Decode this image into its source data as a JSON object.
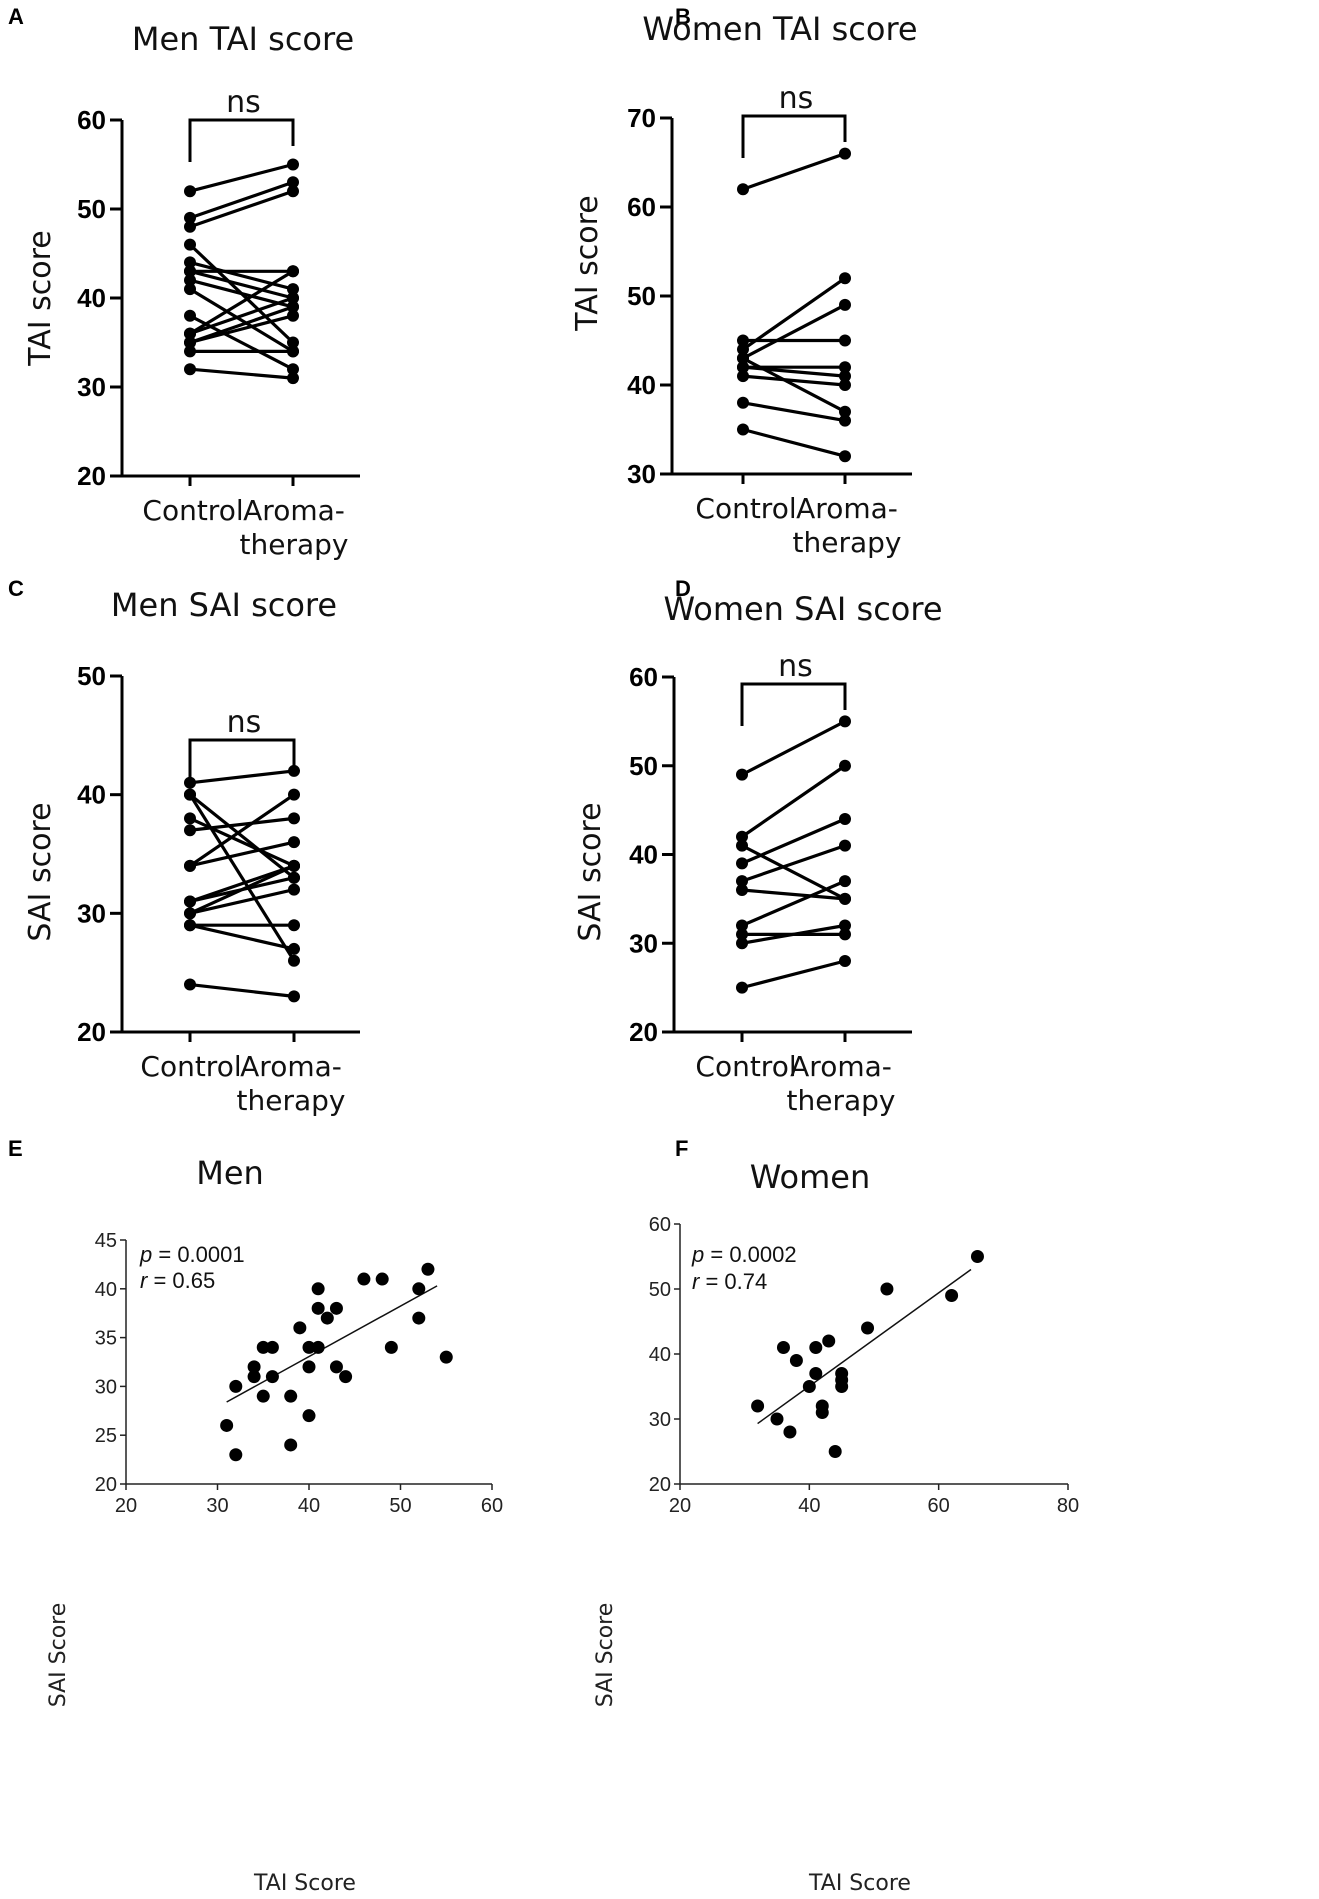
{
  "chart_data": [
    {
      "id": "A",
      "panel_label": "A",
      "type": "paired-dot",
      "title": "Men TAI score",
      "ylabel": "TAI score",
      "ylim": [
        20,
        60
      ],
      "yticks": [
        20,
        30,
        40,
        50,
        60
      ],
      "categories": [
        [
          "Control"
        ],
        [
          "Aroma-",
          "therapy"
        ]
      ],
      "significance": "ns",
      "pairs": [
        [
          52,
          55
        ],
        [
          49,
          53
        ],
        [
          48,
          52
        ],
        [
          46,
          35
        ],
        [
          44,
          41
        ],
        [
          43,
          43
        ],
        [
          43,
          40
        ],
        [
          42,
          39
        ],
        [
          41,
          34
        ],
        [
          38,
          32
        ],
        [
          36,
          43
        ],
        [
          36,
          40
        ],
        [
          35,
          39
        ],
        [
          35,
          38
        ],
        [
          34,
          34
        ],
        [
          32,
          31
        ]
      ]
    },
    {
      "id": "B",
      "panel_label": "B",
      "type": "paired-dot",
      "title": "Women TAI score",
      "ylabel": "TAI score",
      "ylim": [
        30,
        70
      ],
      "yticks": [
        30,
        40,
        50,
        60,
        70
      ],
      "categories": [
        [
          "Control"
        ],
        [
          "Aroma-",
          "therapy"
        ]
      ],
      "significance": "ns",
      "pairs": [
        [
          62,
          66
        ],
        [
          45,
          45
        ],
        [
          44,
          52
        ],
        [
          43,
          49
        ],
        [
          43,
          37
        ],
        [
          42,
          42
        ],
        [
          42,
          41
        ],
        [
          41,
          40
        ],
        [
          38,
          36
        ],
        [
          35,
          32
        ]
      ]
    },
    {
      "id": "C",
      "panel_label": "C",
      "type": "paired-dot",
      "title": "Men SAI score",
      "ylabel": "SAI score",
      "ylim": [
        20,
        50
      ],
      "yticks": [
        20,
        30,
        40,
        50
      ],
      "categories": [
        [
          "Control"
        ],
        [
          "Aroma-",
          "therapy"
        ]
      ],
      "significance": "ns",
      "pairs": [
        [
          41,
          42
        ],
        [
          40,
          33
        ],
        [
          38,
          34
        ],
        [
          37,
          38
        ],
        [
          34,
          40
        ],
        [
          34,
          36
        ],
        [
          31,
          34
        ],
        [
          31,
          33
        ],
        [
          30,
          32
        ],
        [
          29,
          27
        ],
        [
          29,
          29
        ],
        [
          24,
          23
        ],
        [
          40,
          26
        ],
        [
          30,
          34
        ]
      ]
    },
    {
      "id": "D",
      "panel_label": "D",
      "type": "paired-dot",
      "title": "Women SAI score",
      "ylabel": "SAI score",
      "ylim": [
        20,
        60
      ],
      "yticks": [
        20,
        30,
        40,
        50,
        60
      ],
      "categories": [
        [
          "Control"
        ],
        [
          "Aroma-",
          "therapy"
        ]
      ],
      "significance": "ns",
      "pairs": [
        [
          49,
          55
        ],
        [
          42,
          50
        ],
        [
          41,
          35
        ],
        [
          39,
          44
        ],
        [
          37,
          41
        ],
        [
          36,
          35
        ],
        [
          32,
          37
        ],
        [
          31,
          31
        ],
        [
          30,
          32
        ],
        [
          25,
          28
        ]
      ]
    },
    {
      "id": "E",
      "panel_label": "E",
      "type": "scatter",
      "title": "Men",
      "xlabel": "TAI Score",
      "ylabel": "SAI Score",
      "xlim": [
        20,
        60
      ],
      "ylim": [
        20,
        45
      ],
      "xticks": [
        20,
        30,
        40,
        50,
        60
      ],
      "yticks": [
        20,
        25,
        30,
        35,
        40,
        45
      ],
      "stats": {
        "p_label": "p",
        "p_value": "= 0.0001",
        "r_label": "r",
        "r_value": "= 0.65"
      },
      "fit_line": {
        "x": [
          31,
          54
        ],
        "y": [
          28.4,
          40.3
        ]
      },
      "points": [
        [
          31,
          26
        ],
        [
          32,
          23
        ],
        [
          32,
          30
        ],
        [
          34,
          32
        ],
        [
          34,
          31
        ],
        [
          35,
          34
        ],
        [
          35,
          29
        ],
        [
          36,
          34
        ],
        [
          36,
          31
        ],
        [
          38,
          29
        ],
        [
          38,
          24
        ],
        [
          39,
          36
        ],
        [
          40,
          34
        ],
        [
          40,
          32
        ],
        [
          40,
          27
        ],
        [
          41,
          40
        ],
        [
          41,
          38
        ],
        [
          41,
          34
        ],
        [
          42,
          37
        ],
        [
          43,
          38
        ],
        [
          43,
          32
        ],
        [
          44,
          31
        ],
        [
          46,
          41
        ],
        [
          48,
          41
        ],
        [
          49,
          34
        ],
        [
          52,
          40
        ],
        [
          52,
          37
        ],
        [
          53,
          42
        ],
        [
          55,
          33
        ]
      ]
    },
    {
      "id": "F",
      "panel_label": "F",
      "type": "scatter",
      "title": "Women",
      "xlabel": "TAI Score",
      "ylabel": "SAI Score",
      "xlim": [
        20,
        80
      ],
      "ylim": [
        20,
        60
      ],
      "xticks": [
        20,
        40,
        60,
        80
      ],
      "yticks": [
        20,
        30,
        40,
        50,
        60
      ],
      "stats": {
        "p_label": "p",
        "p_value": "= 0.0002",
        "r_label": "r",
        "r_value": "= 0.74"
      },
      "fit_line": {
        "x": [
          32,
          65
        ],
        "y": [
          29.3,
          53
        ]
      },
      "points": [
        [
          32,
          32
        ],
        [
          35,
          30
        ],
        [
          36,
          41
        ],
        [
          37,
          28
        ],
        [
          38,
          39
        ],
        [
          40,
          35
        ],
        [
          41,
          41
        ],
        [
          41,
          37
        ],
        [
          42,
          32
        ],
        [
          42,
          31
        ],
        [
          43,
          42
        ],
        [
          44,
          25
        ],
        [
          45,
          37
        ],
        [
          45,
          36
        ],
        [
          45,
          35
        ],
        [
          49,
          44
        ],
        [
          52,
          50
        ],
        [
          62,
          49
        ],
        [
          66,
          55
        ]
      ]
    }
  ]
}
